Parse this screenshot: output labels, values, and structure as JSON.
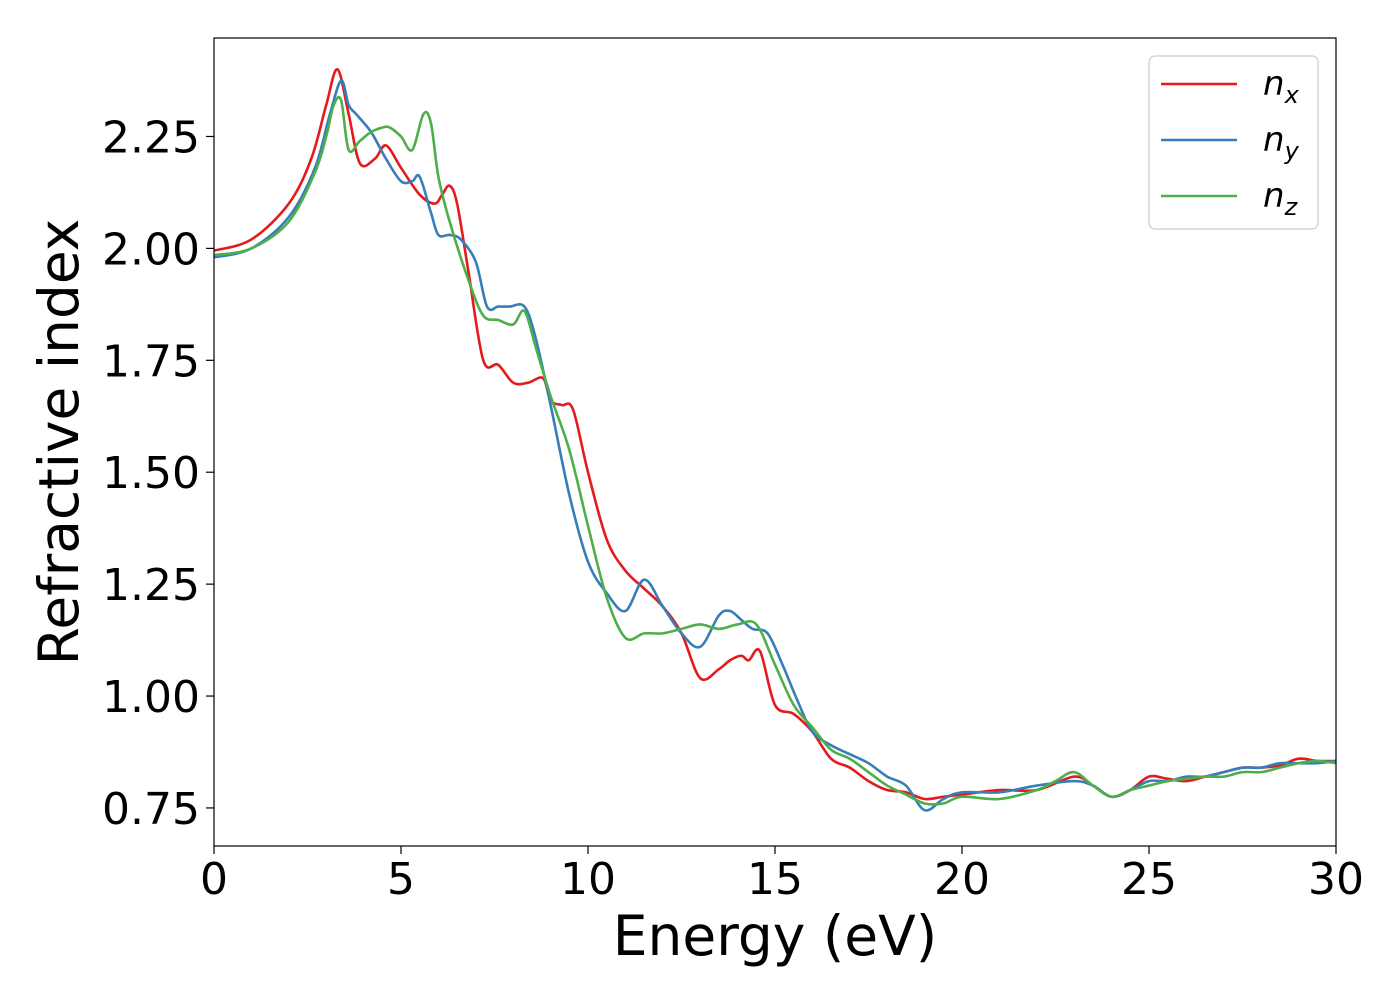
{
  "chart_data": {
    "type": "line",
    "title": "",
    "xlabel": "Energy (eV)",
    "ylabel": "Refractive index",
    "xlim": [
      0,
      30
    ],
    "ylim": [
      0.665,
      2.47
    ],
    "xticks": [
      0,
      5,
      10,
      15,
      20,
      25,
      30
    ],
    "xtick_labels": [
      "0",
      "5",
      "10",
      "15",
      "20",
      "25",
      "30"
    ],
    "yticks": [
      0.75,
      1.0,
      1.25,
      1.5,
      1.75,
      2.0,
      2.25
    ],
    "ytick_labels": [
      "0.75",
      "1.00",
      "1.25",
      "1.50",
      "1.75",
      "2.00",
      "2.25"
    ],
    "grid": false,
    "legend_position": "top-right",
    "series": [
      {
        "name": "n_x",
        "label_main": "n",
        "label_sub": "x",
        "color": "#e41a1c",
        "x": [
          0,
          1,
          2,
          2.6,
          3.0,
          3.3,
          3.6,
          3.9,
          4.3,
          4.6,
          5.0,
          5.5,
          5.9,
          6.1,
          6.3,
          6.5,
          6.8,
          7.2,
          7.6,
          8.0,
          8.4,
          8.8,
          9.0,
          9.3,
          9.6,
          10.0,
          10.5,
          11.0,
          11.5,
          12.0,
          12.5,
          13.0,
          13.5,
          13.8,
          14.1,
          14.3,
          14.6,
          15.0,
          15.5,
          16.0,
          16.5,
          17.0,
          17.5,
          18.0,
          18.5,
          19.0,
          19.5,
          20.0,
          21.0,
          22.0,
          23.0,
          23.5,
          24.0,
          24.5,
          25.0,
          25.5,
          26.0,
          26.5,
          27.0,
          27.5,
          28.0,
          28.5,
          29.0,
          29.5,
          30.0
        ],
        "y": [
          1.995,
          2.02,
          2.1,
          2.2,
          2.32,
          2.4,
          2.3,
          2.19,
          2.2,
          2.23,
          2.18,
          2.12,
          2.1,
          2.12,
          2.14,
          2.1,
          1.95,
          1.75,
          1.74,
          1.7,
          1.7,
          1.71,
          1.66,
          1.65,
          1.64,
          1.5,
          1.35,
          1.28,
          1.24,
          1.2,
          1.14,
          1.04,
          1.06,
          1.08,
          1.09,
          1.08,
          1.1,
          0.98,
          0.96,
          0.92,
          0.86,
          0.84,
          0.81,
          0.79,
          0.785,
          0.77,
          0.775,
          0.78,
          0.79,
          0.79,
          0.82,
          0.8,
          0.775,
          0.79,
          0.82,
          0.815,
          0.81,
          0.82,
          0.83,
          0.84,
          0.84,
          0.845,
          0.86,
          0.855,
          0.855
        ]
      },
      {
        "name": "n_y",
        "label_main": "n",
        "label_sub": "y",
        "color": "#377eb8",
        "x": [
          0,
          1,
          2,
          2.7,
          3.1,
          3.4,
          3.6,
          3.8,
          4.2,
          4.6,
          5.0,
          5.3,
          5.5,
          5.8,
          6.0,
          6.3,
          6.6,
          7.0,
          7.3,
          7.6,
          7.9,
          8.3,
          8.6,
          9.0,
          9.5,
          10.0,
          10.5,
          11.0,
          11.5,
          12.0,
          12.5,
          13.0,
          13.5,
          13.8,
          14.1,
          14.4,
          14.8,
          15.2,
          15.6,
          16.0,
          16.5,
          17.0,
          17.5,
          18.0,
          18.5,
          19.0,
          19.5,
          20.0,
          21.0,
          22.0,
          23.0,
          23.5,
          24.0,
          24.5,
          25.0,
          25.5,
          26.0,
          26.5,
          27.0,
          27.5,
          28.0,
          28.5,
          29.0,
          29.5,
          30.0
        ],
        "y": [
          1.98,
          2.0,
          2.07,
          2.18,
          2.3,
          2.375,
          2.32,
          2.3,
          2.26,
          2.2,
          2.15,
          2.15,
          2.16,
          2.08,
          2.03,
          2.03,
          2.02,
          1.97,
          1.87,
          1.87,
          1.87,
          1.87,
          1.8,
          1.65,
          1.45,
          1.3,
          1.23,
          1.19,
          1.26,
          1.2,
          1.14,
          1.11,
          1.18,
          1.19,
          1.17,
          1.15,
          1.14,
          1.07,
          0.99,
          0.92,
          0.89,
          0.87,
          0.85,
          0.82,
          0.8,
          0.745,
          0.77,
          0.785,
          0.785,
          0.8,
          0.81,
          0.8,
          0.775,
          0.79,
          0.81,
          0.81,
          0.82,
          0.82,
          0.83,
          0.84,
          0.84,
          0.85,
          0.85,
          0.85,
          0.855
        ]
      },
      {
        "name": "n_z",
        "label_main": "n",
        "label_sub": "z",
        "color": "#4daf4a",
        "x": [
          0,
          1,
          2,
          2.7,
          3.0,
          3.2,
          3.4,
          3.6,
          3.9,
          4.2,
          4.5,
          4.7,
          5.0,
          5.3,
          5.6,
          5.8,
          6.0,
          6.3,
          6.8,
          7.2,
          7.6,
          8.0,
          8.3,
          8.6,
          9.0,
          9.5,
          10.0,
          10.5,
          11.0,
          11.5,
          12.0,
          12.5,
          13.0,
          13.5,
          14.0,
          14.5,
          15.0,
          15.5,
          16.0,
          16.5,
          17.0,
          17.5,
          18.0,
          18.5,
          19.0,
          19.5,
          20.0,
          21.0,
          22.0,
          22.5,
          23.0,
          23.5,
          24.0,
          24.5,
          25.0,
          25.5,
          26.0,
          26.5,
          27.0,
          27.5,
          28.0,
          28.5,
          29.0,
          29.5,
          30.0
        ],
        "y": [
          1.985,
          2.0,
          2.06,
          2.17,
          2.25,
          2.32,
          2.33,
          2.22,
          2.24,
          2.26,
          2.27,
          2.27,
          2.25,
          2.22,
          2.3,
          2.28,
          2.16,
          2.06,
          1.93,
          1.85,
          1.84,
          1.83,
          1.86,
          1.78,
          1.67,
          1.55,
          1.38,
          1.22,
          1.13,
          1.14,
          1.14,
          1.15,
          1.16,
          1.15,
          1.16,
          1.16,
          1.07,
          0.98,
          0.93,
          0.88,
          0.86,
          0.83,
          0.8,
          0.78,
          0.76,
          0.76,
          0.775,
          0.77,
          0.79,
          0.81,
          0.83,
          0.8,
          0.775,
          0.79,
          0.8,
          0.81,
          0.815,
          0.82,
          0.82,
          0.83,
          0.83,
          0.84,
          0.85,
          0.855,
          0.85
        ]
      }
    ]
  }
}
